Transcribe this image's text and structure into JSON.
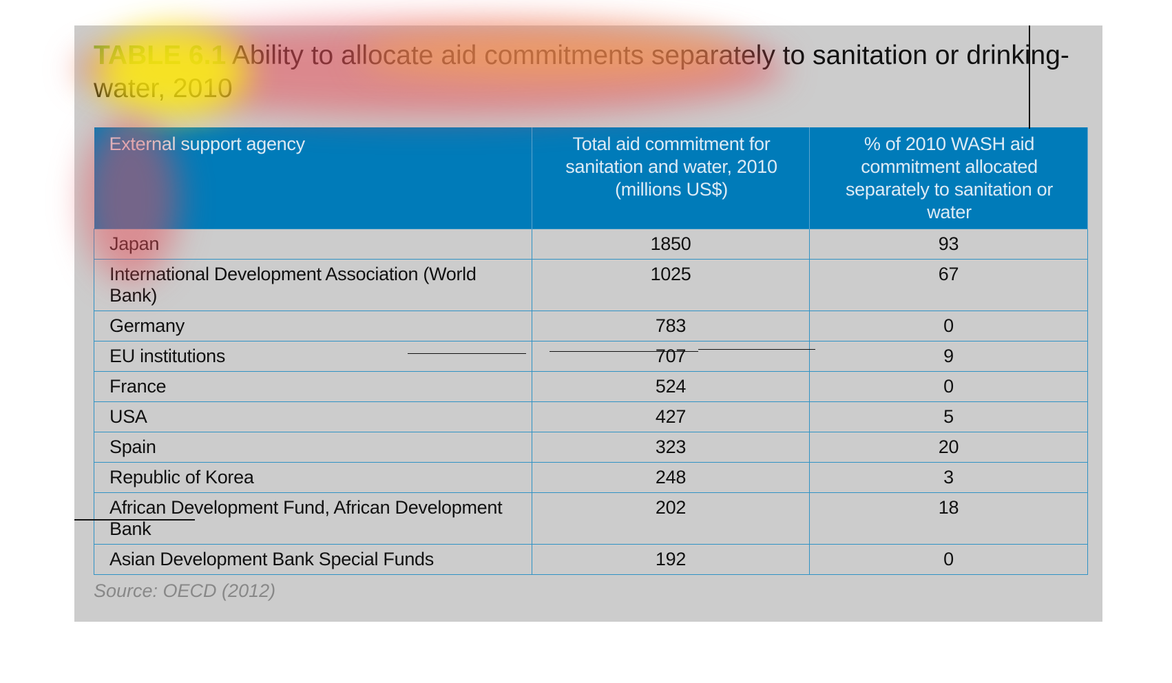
{
  "title": {
    "label": "TABLE 6.1",
    "text": "Ability to allocate aid commitments separately to sanitation or drinking-water, 2010"
  },
  "table": {
    "headers": [
      "External support agency",
      "Total aid commitment for sanitation and water, 2010 (millions US$)",
      "% of 2010 WASH aid commitment allocated separately to sanitation or water"
    ],
    "rows": [
      {
        "agency": "Japan",
        "total": "1850",
        "pct": "93"
      },
      {
        "agency": "International Development Association (World Bank)",
        "total": "1025",
        "pct": "67"
      },
      {
        "agency": "Germany",
        "total": "783",
        "pct": "0"
      },
      {
        "agency": "EU institutions",
        "total": "707",
        "pct": "9"
      },
      {
        "agency": "France",
        "total": "524",
        "pct": "0"
      },
      {
        "agency": "USA",
        "total": "427",
        "pct": "5"
      },
      {
        "agency": "Spain",
        "total": "323",
        "pct": "20"
      },
      {
        "agency": "Republic of Korea",
        "total": "248",
        "pct": "3"
      },
      {
        "agency": "African Development Fund, African Development Bank",
        "total": "202",
        "pct": "18"
      },
      {
        "agency": "Asian Development Bank Special Funds",
        "total": "192",
        "pct": "0"
      }
    ]
  },
  "source": "Source: OECD (2012)",
  "colors": {
    "panel": "#cccccc",
    "header_bg": "#007bb9",
    "label_accent": "#78a83a",
    "border": "#2f92c4",
    "source": "#888888"
  }
}
